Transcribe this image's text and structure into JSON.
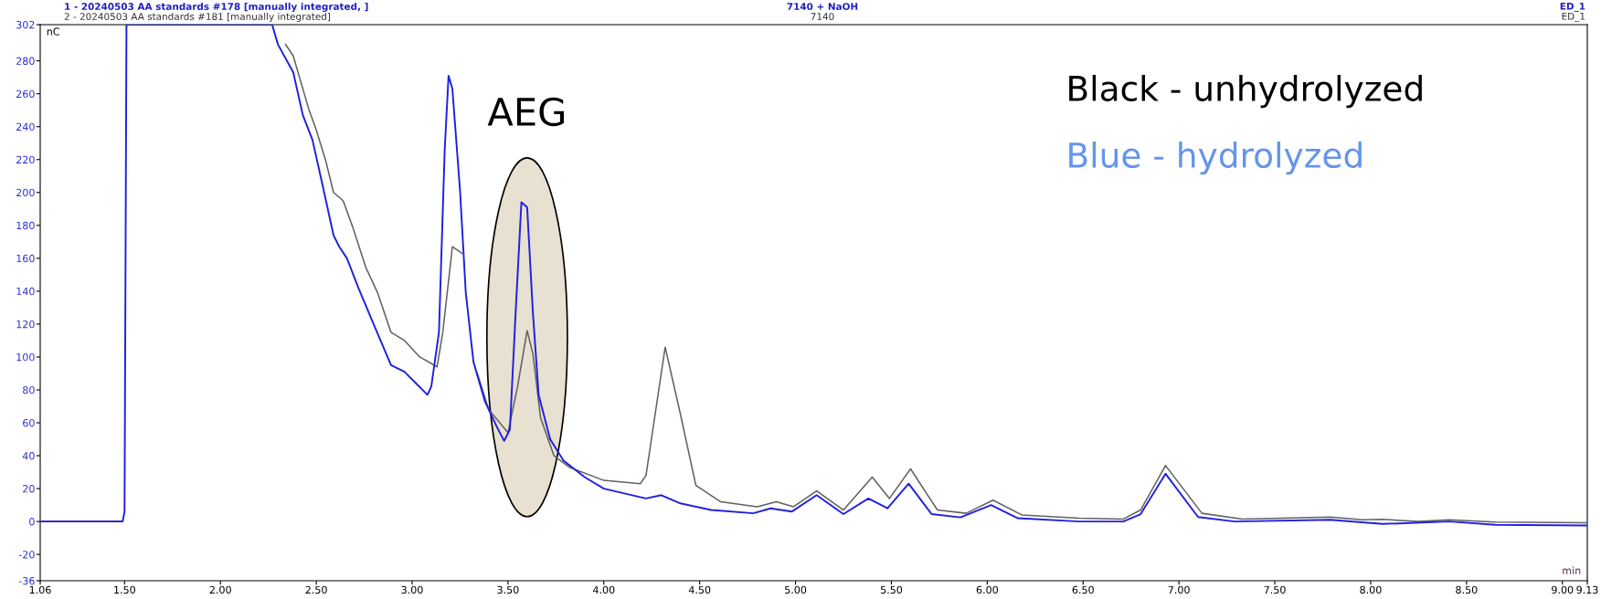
{
  "chart_data": {
    "type": "line",
    "xlabel": "min",
    "ylabel": "nC",
    "xlim": [
      1.06,
      9.13
    ],
    "ylim": [
      -36,
      302
    ],
    "xticks": [
      1.06,
      {
        "value": 1.5,
        "label": "1.50"
      },
      {
        "value": 2,
        "label": "2.00"
      },
      {
        "value": 2.5,
        "label": "2.50"
      },
      {
        "value": 3,
        "label": "3.00"
      },
      {
        "value": 3.5,
        "label": "3.50"
      },
      {
        "value": 4,
        "label": "4.00"
      },
      {
        "value": 4.5,
        "label": "4.50"
      },
      {
        "value": 5,
        "label": "5.00"
      },
      {
        "value": 5.5,
        "label": "5.50"
      },
      {
        "value": 6,
        "label": "6.00"
      },
      {
        "value": 6.5,
        "label": "6.50"
      },
      {
        "value": 7,
        "label": "7.00"
      },
      {
        "value": 7.5,
        "label": "7.50"
      },
      {
        "value": 8,
        "label": "8.00"
      },
      {
        "value": 8.5,
        "label": "8.50"
      },
      {
        "value": 9,
        "label": "9.00"
      },
      9.13
    ],
    "yticks": [
      -36,
      -20,
      0,
      20,
      40,
      60,
      80,
      100,
      120,
      140,
      160,
      180,
      200,
      220,
      240,
      260,
      280,
      302
    ],
    "grid": false,
    "legend": false,
    "marker": "none",
    "line_style": "solid",
    "series": [
      {
        "color": "#606060",
        "x": [
          1.06,
          1.49,
          1.5,
          1.51,
          2.27,
          2.34,
          2.38,
          2.46,
          2.5,
          2.55,
          2.59,
          2.64,
          2.69,
          2.76,
          2.82,
          2.89,
          2.96,
          3.04,
          3.13,
          3.16,
          3.21,
          3.26,
          3.29,
          3.34,
          3.4,
          3.5,
          3.55,
          3.6,
          3.63,
          3.67,
          3.74,
          3.82,
          4.0,
          4.19,
          4.22,
          4.32,
          4.4,
          4.48,
          4.61,
          4.8,
          4.9,
          4.99,
          5.11,
          5.25,
          5.4,
          5.49,
          5.6,
          5.74,
          5.89,
          6.03,
          6.18,
          6.48,
          6.71,
          6.8,
          6.93,
          7.12,
          7.33,
          7.79,
          7.96,
          8.06,
          8.25,
          8.41,
          8.65,
          9.13
        ],
        "values": [
          0,
          0,
          null,
          null,
          null,
          290,
          283,
          251,
          238,
          219,
          200,
          195,
          179,
          154,
          139,
          115,
          110,
          100,
          94,
          115,
          167,
          163,
          null,
          90,
          68,
          54,
          82,
          116,
          102,
          63,
          40,
          33,
          25,
          23,
          28,
          106,
          65,
          22,
          12,
          9,
          12,
          9,
          18.6,
          7,
          27,
          14,
          32,
          7,
          5,
          13,
          4,
          2,
          1.5,
          7,
          34,
          5,
          1.5,
          2.7,
          1,
          1.3,
          0,
          1,
          -0.3,
          -0.8
        ]
      },
      {
        "color": "#2020e0",
        "x": [
          1.06,
          1.49,
          1.5,
          1.51,
          2.27,
          2.3,
          2.38,
          2.43,
          2.48,
          2.53,
          2.59,
          2.62,
          2.66,
          2.72,
          2.81,
          2.89,
          2.96,
          3.02,
          3.08,
          3.1,
          3.14,
          3.17,
          3.19,
          3.21,
          3.25,
          3.28,
          3.32,
          3.38,
          3.44,
          3.48,
          3.51,
          3.54,
          3.57,
          3.6,
          3.63,
          3.66,
          3.72,
          3.79,
          3.9,
          4.0,
          4.22,
          4.3,
          4.4,
          4.56,
          4.78,
          4.87,
          4.98,
          5.11,
          5.25,
          5.38,
          5.48,
          5.59,
          5.71,
          5.86,
          6.02,
          6.16,
          6.48,
          6.71,
          6.8,
          6.93,
          7.1,
          7.29,
          7.79,
          8.06,
          8.41,
          8.65,
          9.13
        ],
        "values": [
          0,
          0,
          6,
          302,
          302,
          290,
          273,
          247,
          232,
          206,
          174,
          167,
          160,
          142,
          117,
          95,
          91,
          84,
          77,
          82,
          115,
          226,
          271,
          263,
          201,
          139,
          97,
          73,
          58,
          49,
          56,
          127,
          194,
          191,
          127,
          77,
          50,
          37,
          27,
          20,
          14,
          16,
          11,
          7,
          5,
          8,
          6,
          16,
          4.5,
          14,
          8,
          23,
          4.5,
          2.5,
          10,
          2,
          0,
          0,
          4.5,
          29,
          2.7,
          0,
          1,
          -1.5,
          0,
          -2,
          -2.4
        ]
      }
    ],
    "annotations": [
      "1 - 20240503 AA standards #178 [manually integrated, ]",
      "7140 + NaOH",
      "ED_1",
      "2 - 20240503 AA standards #181 [manually integrated]",
      "7140",
      "ED_1",
      {
        "text": "AEG",
        "x": 3.6,
        "y": 195
      },
      "Black - unhydrolyzed",
      "Blue - hydrolyzed"
    ]
  }
}
